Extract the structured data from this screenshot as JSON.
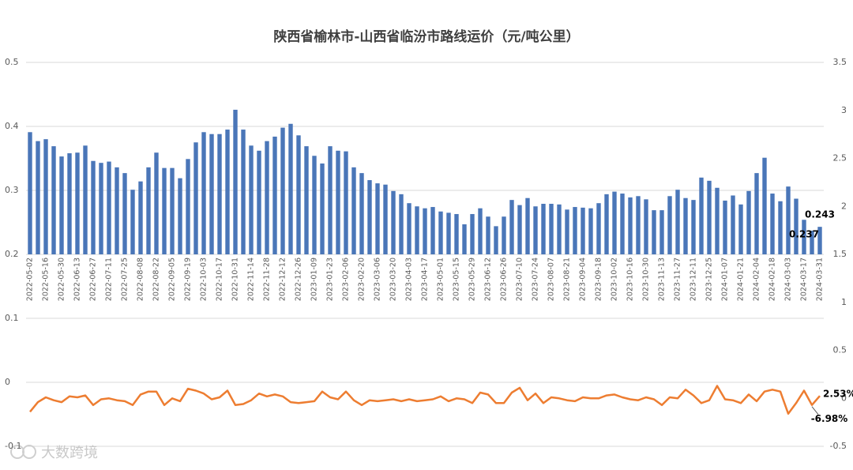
{
  "chart_data": {
    "type": "combo",
    "title": "陕西省榆林市-山西省临汾市路线运价（元/吨公里）",
    "watermark": "大数跨境",
    "categories": [
      "2022-05-02",
      null,
      "2022-05-16",
      null,
      "2022-05-30",
      null,
      "2022-06-13",
      null,
      "2022-06-27",
      null,
      "2022-07-11",
      null,
      "2022-07-25",
      null,
      "2022-08-08",
      null,
      "2022-08-22",
      null,
      "2022-09-05",
      null,
      "2022-09-19",
      null,
      "2022-10-03",
      null,
      "2022-10-17",
      null,
      "2022-10-31",
      null,
      "2022-11-14",
      null,
      "2022-11-28",
      null,
      "2022-12-12",
      null,
      "2022-12-26",
      null,
      "2023-01-09",
      null,
      "2023-01-23",
      null,
      "2023-02-06",
      null,
      "2023-02-20",
      null,
      "2023-03-06",
      null,
      "2023-03-20",
      null,
      "2023-04-03",
      null,
      "2023-04-17",
      null,
      "2023-05-01",
      null,
      "2023-05-15",
      null,
      "2023-05-29",
      null,
      "2023-06-12",
      null,
      "2023-06-26",
      null,
      "2023-07-10",
      null,
      "2023-07-24",
      null,
      "2023-08-07",
      null,
      "2023-08-21",
      null,
      "2023-09-04",
      null,
      "2023-09-18",
      null,
      "2023-10-02",
      null,
      "2023-10-16",
      null,
      "2023-10-30",
      null,
      "2023-11-13",
      null,
      "2023-11-27",
      null,
      "2023-12-11",
      null,
      "2023-12-25",
      null,
      "2024-01-07",
      null,
      "2024-01-21",
      null,
      "2024-02-04",
      null,
      "2024-02-18",
      null,
      "2024-03-03",
      null,
      "2024-03-17",
      null,
      "2024-03-31"
    ],
    "series": [
      {
        "type": "bar",
        "axis": "y",
        "color": "#4a76b8",
        "label_color": "#000000",
        "values": [
          0.391,
          0.377,
          0.38,
          0.369,
          0.353,
          0.358,
          0.359,
          0.37,
          0.346,
          0.343,
          0.345,
          0.336,
          0.327,
          0.301,
          0.314,
          0.336,
          0.359,
          0.335,
          0.335,
          0.319,
          0.349,
          0.375,
          0.391,
          0.388,
          0.388,
          0.395,
          0.426,
          0.395,
          0.37,
          0.362,
          0.377,
          0.384,
          0.398,
          0.404,
          0.386,
          0.369,
          0.354,
          0.342,
          0.369,
          0.362,
          0.361,
          0.336,
          0.327,
          0.316,
          0.311,
          0.309,
          0.299,
          0.294,
          0.28,
          0.275,
          0.272,
          0.274,
          0.267,
          0.265,
          0.263,
          0.247,
          0.263,
          0.272,
          0.259,
          0.244,
          0.259,
          0.285,
          0.277,
          0.288,
          0.275,
          0.279,
          0.279,
          0.278,
          0.27,
          0.274,
          0.273,
          0.272,
          0.28,
          0.294,
          0.298,
          0.295,
          0.289,
          0.291,
          0.286,
          0.269,
          0.269,
          0.291,
          0.301,
          0.288,
          0.285,
          0.32,
          0.315,
          0.304,
          0.284,
          0.292,
          0.278,
          0.299,
          0.327,
          0.351,
          0.295,
          0.283,
          0.306,
          0.287,
          0.254,
          0.237,
          0.243
        ],
        "labeled": [
          99,
          100
        ]
      },
      {
        "type": "line",
        "axis": "y2",
        "color": "#ed7d31",
        "values": [
          -0.14,
          -0.04,
          0.01,
          -0.02,
          -0.04,
          0.02,
          0.01,
          0.03,
          -0.07,
          -0.01,
          0.0,
          -0.02,
          -0.03,
          -0.07,
          0.04,
          0.07,
          0.07,
          -0.07,
          0.0,
          -0.03,
          0.1,
          0.08,
          0.05,
          -0.01,
          0.01,
          0.08,
          -0.07,
          -0.06,
          -0.02,
          0.05,
          0.02,
          0.04,
          0.02,
          -0.04,
          -0.05,
          -0.04,
          -0.03,
          0.07,
          0.01,
          -0.01,
          0.07,
          -0.02,
          -0.07,
          -0.02,
          -0.03,
          -0.02,
          -0.01,
          -0.03,
          -0.01,
          -0.03,
          -0.02,
          -0.01,
          0.02,
          -0.03,
          0.0,
          -0.01,
          -0.05,
          0.06,
          0.04,
          -0.05,
          -0.05,
          0.06,
          0.11,
          -0.02,
          0.05,
          -0.05,
          0.01,
          0.0,
          -0.02,
          -0.03,
          0.01,
          0.0,
          0.0,
          0.03,
          0.04,
          0.01,
          -0.01,
          -0.02,
          0.01,
          -0.01,
          -0.07,
          0.01,
          0.0,
          0.09,
          0.03,
          -0.05,
          -0.02,
          0.13,
          -0.01,
          -0.02,
          -0.05,
          0.04,
          -0.03,
          0.07,
          0.09,
          0.07,
          -0.16,
          -0.05,
          0.08,
          -0.0698,
          0.0253
        ],
        "value_labels": [
          null,
          null,
          null,
          null,
          null,
          null,
          null,
          null,
          null,
          null,
          null,
          null,
          null,
          null,
          null,
          null,
          null,
          null,
          null,
          null,
          null,
          null,
          null,
          null,
          null,
          null,
          null,
          null,
          null,
          null,
          null,
          null,
          null,
          null,
          null,
          null,
          null,
          null,
          null,
          null,
          null,
          null,
          null,
          null,
          null,
          null,
          null,
          null,
          null,
          null,
          null,
          null,
          null,
          null,
          null,
          null,
          null,
          null,
          null,
          null,
          null,
          null,
          null,
          null,
          null,
          null,
          null,
          null,
          null,
          null,
          null,
          null,
          null,
          null,
          null,
          null,
          null,
          null,
          null,
          null,
          null,
          null,
          null,
          null,
          null,
          null,
          null,
          null,
          null,
          null,
          null,
          null,
          null,
          null,
          null,
          null,
          null,
          null,
          null,
          "-6.98%",
          "2.53%"
        ]
      }
    ],
    "bar_baseline": 0.2,
    "ylim": [
      -0.1,
      0.5
    ],
    "yticks": [
      -0.1,
      0,
      0.1,
      0.2,
      0.3,
      0.4,
      0.5
    ],
    "y2lim": [
      -0.5,
      3.5
    ],
    "y2ticks": [
      -0.5,
      0,
      0.5,
      1,
      1.5,
      2,
      2.5,
      3,
      3.5
    ],
    "grid": true
  }
}
